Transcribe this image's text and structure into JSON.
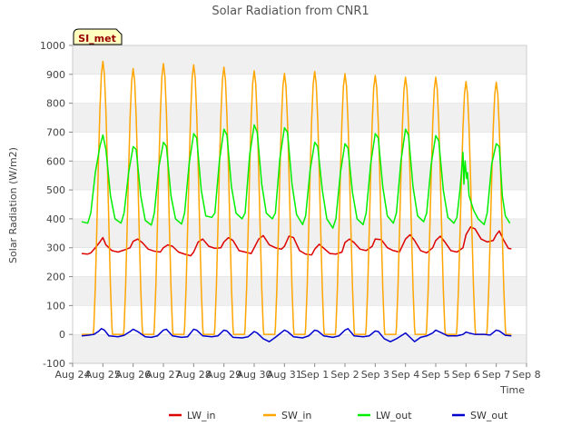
{
  "chart_data": {
    "type": "line",
    "title": "Solar Radiation from CNR1",
    "xlabel": "Time",
    "ylabel": "Solar Radiation (W/m2)",
    "ylim": [
      -100,
      1000
    ],
    "yticks": [
      -100,
      0,
      100,
      200,
      300,
      400,
      500,
      600,
      700,
      800,
      900,
      1000
    ],
    "xlim_days": [
      0,
      15
    ],
    "xtick_labels": [
      "Aug 24",
      "Aug 25",
      "Aug 26",
      "Aug 27",
      "Aug 28",
      "Aug 29",
      "Aug 30",
      "Aug 31",
      "Sep 1",
      "Sep 2",
      "Sep 3",
      "Sep 4",
      "Sep 5",
      "Sep 6",
      "Sep 7",
      "Sep 8"
    ],
    "grid": "horizontal bands",
    "legend_position": "bottom",
    "badge": "SI_met",
    "colors": {
      "LW_in": "#dd0000",
      "SW_in": "#ffa500",
      "LW_out": "#00ee00",
      "SW_out": "#0000cc",
      "band": "#f0f0f0",
      "badge_bg": "#ffffc0",
      "badge_text": "#990000"
    },
    "series": [
      {
        "name": "LW_in",
        "points": [
          [
            0.3,
            280
          ],
          [
            0.5,
            278
          ],
          [
            0.6,
            282
          ],
          [
            0.75,
            300
          ],
          [
            0.9,
            320
          ],
          [
            1.0,
            335
          ],
          [
            1.1,
            310
          ],
          [
            1.3,
            290
          ],
          [
            1.5,
            285
          ],
          [
            1.7,
            292
          ],
          [
            1.9,
            300
          ],
          [
            2.0,
            322
          ],
          [
            2.15,
            330
          ],
          [
            2.3,
            318
          ],
          [
            2.5,
            295
          ],
          [
            2.7,
            288
          ],
          [
            2.9,
            285
          ],
          [
            3.0,
            300
          ],
          [
            3.15,
            310
          ],
          [
            3.3,
            305
          ],
          [
            3.5,
            285
          ],
          [
            3.7,
            278
          ],
          [
            3.9,
            272
          ],
          [
            4.0,
            285
          ],
          [
            4.15,
            320
          ],
          [
            4.3,
            330
          ],
          [
            4.5,
            305
          ],
          [
            4.7,
            298
          ],
          [
            4.9,
            300
          ],
          [
            5.0,
            320
          ],
          [
            5.15,
            335
          ],
          [
            5.3,
            325
          ],
          [
            5.5,
            290
          ],
          [
            5.7,
            285
          ],
          [
            5.9,
            280
          ],
          [
            6.0,
            300
          ],
          [
            6.15,
            330
          ],
          [
            6.3,
            342
          ],
          [
            6.5,
            310
          ],
          [
            6.7,
            300
          ],
          [
            6.9,
            295
          ],
          [
            7.0,
            305
          ],
          [
            7.15,
            340
          ],
          [
            7.3,
            335
          ],
          [
            7.5,
            290
          ],
          [
            7.7,
            278
          ],
          [
            7.9,
            275
          ],
          [
            8.0,
            295
          ],
          [
            8.15,
            312
          ],
          [
            8.3,
            298
          ],
          [
            8.5,
            280
          ],
          [
            8.7,
            278
          ],
          [
            8.9,
            285
          ],
          [
            9.0,
            318
          ],
          [
            9.15,
            330
          ],
          [
            9.3,
            318
          ],
          [
            9.5,
            295
          ],
          [
            9.7,
            290
          ],
          [
            9.9,
            305
          ],
          [
            10.0,
            330
          ],
          [
            10.2,
            328
          ],
          [
            10.4,
            300
          ],
          [
            10.6,
            290
          ],
          [
            10.8,
            285
          ],
          [
            11.0,
            330
          ],
          [
            11.15,
            345
          ],
          [
            11.3,
            325
          ],
          [
            11.5,
            290
          ],
          [
            11.7,
            282
          ],
          [
            11.9,
            300
          ],
          [
            12.0,
            325
          ],
          [
            12.15,
            340
          ],
          [
            12.3,
            320
          ],
          [
            12.5,
            290
          ],
          [
            12.7,
            285
          ],
          [
            12.9,
            300
          ],
          [
            13.0,
            345
          ],
          [
            13.15,
            372
          ],
          [
            13.3,
            365
          ],
          [
            13.5,
            330
          ],
          [
            13.7,
            320
          ],
          [
            13.9,
            325
          ],
          [
            14.0,
            345
          ],
          [
            14.1,
            358
          ],
          [
            14.25,
            325
          ],
          [
            14.4,
            298
          ],
          [
            14.5,
            296
          ]
        ]
      },
      {
        "name": "SW_in",
        "peaks": [
          945,
          920,
          937,
          933,
          925,
          912,
          903,
          910,
          902,
          896,
          890,
          890,
          875,
          873
        ]
      },
      {
        "name": "LW_out",
        "points": [
          [
            0.3,
            390
          ],
          [
            0.5,
            385
          ],
          [
            0.6,
            420
          ],
          [
            0.75,
            560
          ],
          [
            0.9,
            650
          ],
          [
            1.0,
            690
          ],
          [
            1.1,
            640
          ],
          [
            1.25,
            480
          ],
          [
            1.4,
            400
          ],
          [
            1.6,
            385
          ],
          [
            1.7,
            420
          ],
          [
            1.85,
            560
          ],
          [
            2.0,
            650
          ],
          [
            2.1,
            640
          ],
          [
            2.25,
            480
          ],
          [
            2.4,
            395
          ],
          [
            2.6,
            378
          ],
          [
            2.7,
            420
          ],
          [
            2.85,
            580
          ],
          [
            3.0,
            665
          ],
          [
            3.1,
            650
          ],
          [
            3.25,
            480
          ],
          [
            3.4,
            400
          ],
          [
            3.6,
            382
          ],
          [
            3.7,
            420
          ],
          [
            3.85,
            590
          ],
          [
            4.0,
            695
          ],
          [
            4.1,
            680
          ],
          [
            4.25,
            500
          ],
          [
            4.4,
            410
          ],
          [
            4.6,
            405
          ],
          [
            4.7,
            420
          ],
          [
            4.85,
            600
          ],
          [
            5.0,
            710
          ],
          [
            5.1,
            690
          ],
          [
            5.25,
            510
          ],
          [
            5.4,
            420
          ],
          [
            5.6,
            400
          ],
          [
            5.7,
            420
          ],
          [
            5.85,
            620
          ],
          [
            6.0,
            725
          ],
          [
            6.1,
            700
          ],
          [
            6.25,
            520
          ],
          [
            6.4,
            420
          ],
          [
            6.6,
            400
          ],
          [
            6.7,
            420
          ],
          [
            6.85,
            610
          ],
          [
            7.0,
            715
          ],
          [
            7.1,
            700
          ],
          [
            7.25,
            520
          ],
          [
            7.4,
            415
          ],
          [
            7.6,
            380
          ],
          [
            7.7,
            410
          ],
          [
            7.85,
            570
          ],
          [
            8.0,
            665
          ],
          [
            8.1,
            650
          ],
          [
            8.25,
            500
          ],
          [
            8.4,
            400
          ],
          [
            8.6,
            368
          ],
          [
            8.7,
            400
          ],
          [
            8.85,
            560
          ],
          [
            9.0,
            660
          ],
          [
            9.1,
            645
          ],
          [
            9.25,
            490
          ],
          [
            9.4,
            400
          ],
          [
            9.6,
            380
          ],
          [
            9.7,
            420
          ],
          [
            9.85,
            590
          ],
          [
            10.0,
            695
          ],
          [
            10.1,
            680
          ],
          [
            10.25,
            510
          ],
          [
            10.4,
            410
          ],
          [
            10.6,
            385
          ],
          [
            10.7,
            420
          ],
          [
            10.85,
            600
          ],
          [
            11.0,
            710
          ],
          [
            11.1,
            690
          ],
          [
            11.25,
            510
          ],
          [
            11.4,
            410
          ],
          [
            11.6,
            390
          ],
          [
            11.7,
            420
          ],
          [
            11.85,
            590
          ],
          [
            12.0,
            688
          ],
          [
            12.1,
            670
          ],
          [
            12.25,
            500
          ],
          [
            12.4,
            405
          ],
          [
            12.6,
            385
          ],
          [
            12.7,
            405
          ],
          [
            12.8,
            500
          ],
          [
            12.85,
            560
          ],
          [
            12.9,
            630
          ],
          [
            12.93,
            520
          ],
          [
            12.97,
            600
          ],
          [
            13.02,
            540
          ],
          [
            13.05,
            560
          ],
          [
            13.1,
            480
          ],
          [
            13.25,
            430
          ],
          [
            13.4,
            400
          ],
          [
            13.6,
            380
          ],
          [
            13.7,
            420
          ],
          [
            13.85,
            590
          ],
          [
            14.0,
            660
          ],
          [
            14.1,
            650
          ],
          [
            14.2,
            480
          ],
          [
            14.3,
            410
          ],
          [
            14.45,
            385
          ]
        ]
      },
      {
        "name": "SW_out",
        "points": [
          [
            0.3,
            -5
          ],
          [
            0.5,
            -3
          ],
          [
            0.7,
            0
          ],
          [
            0.85,
            10
          ],
          [
            0.95,
            20
          ],
          [
            1.05,
            15
          ],
          [
            1.2,
            -5
          ],
          [
            1.5,
            -8
          ],
          [
            1.7,
            -3
          ],
          [
            1.9,
            10
          ],
          [
            2.0,
            18
          ],
          [
            2.15,
            10
          ],
          [
            2.4,
            -8
          ],
          [
            2.6,
            -10
          ],
          [
            2.8,
            -5
          ],
          [
            3.0,
            15
          ],
          [
            3.1,
            18
          ],
          [
            3.3,
            -5
          ],
          [
            3.6,
            -10
          ],
          [
            3.8,
            -8
          ],
          [
            4.0,
            18
          ],
          [
            4.1,
            15
          ],
          [
            4.3,
            -5
          ],
          [
            4.6,
            -8
          ],
          [
            4.8,
            -5
          ],
          [
            5.0,
            15
          ],
          [
            5.1,
            12
          ],
          [
            5.3,
            -10
          ],
          [
            5.6,
            -12
          ],
          [
            5.8,
            -8
          ],
          [
            6.0,
            10
          ],
          [
            6.1,
            5
          ],
          [
            6.3,
            -15
          ],
          [
            6.5,
            -25
          ],
          [
            6.7,
            -10
          ],
          [
            7.0,
            15
          ],
          [
            7.1,
            10
          ],
          [
            7.3,
            -8
          ],
          [
            7.6,
            -12
          ],
          [
            7.8,
            -5
          ],
          [
            8.0,
            15
          ],
          [
            8.1,
            12
          ],
          [
            8.3,
            -5
          ],
          [
            8.6,
            -10
          ],
          [
            8.8,
            -5
          ],
          [
            9.0,
            15
          ],
          [
            9.1,
            20
          ],
          [
            9.3,
            -5
          ],
          [
            9.6,
            -8
          ],
          [
            9.8,
            -5
          ],
          [
            10.0,
            12
          ],
          [
            10.1,
            10
          ],
          [
            10.3,
            -15
          ],
          [
            10.5,
            -25
          ],
          [
            10.7,
            -15
          ],
          [
            11.0,
            5
          ],
          [
            11.1,
            -5
          ],
          [
            11.3,
            -25
          ],
          [
            11.5,
            -10
          ],
          [
            11.7,
            -5
          ],
          [
            11.9,
            5
          ],
          [
            12.0,
            15
          ],
          [
            12.2,
            5
          ],
          [
            12.4,
            -5
          ],
          [
            12.7,
            -5
          ],
          [
            12.9,
            0
          ],
          [
            13.0,
            8
          ],
          [
            13.1,
            5
          ],
          [
            13.3,
            0
          ],
          [
            13.6,
            0
          ],
          [
            13.8,
            -2
          ],
          [
            14.0,
            15
          ],
          [
            14.1,
            12
          ],
          [
            14.3,
            -3
          ],
          [
            14.5,
            -5
          ]
        ]
      }
    ]
  }
}
